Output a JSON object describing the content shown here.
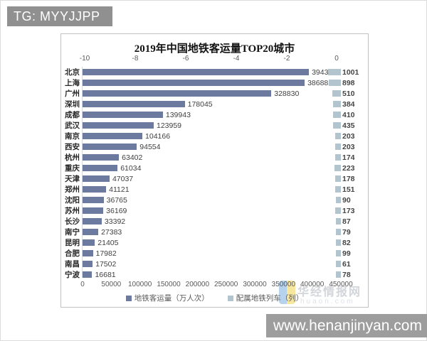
{
  "banners": {
    "tg": "TG: MYYJJPP",
    "site": "www.henanjinyan.com"
  },
  "watermark": {
    "brand": "华经情报网",
    "domain": "huaon.com",
    "logo_colors": [
      "#aacbe9",
      "#f6e28e"
    ]
  },
  "chart_data": {
    "type": "bar",
    "orientation": "horizontal",
    "title": "2019年中国地铁客运量TOP20城市",
    "categories": [
      "北京",
      "上海",
      "广州",
      "深圳",
      "成都",
      "武汉",
      "南京",
      "西安",
      "杭州",
      "重庆",
      "天津",
      "郑州",
      "沈阳",
      "苏州",
      "长沙",
      "南宁",
      "昆明",
      "合肥",
      "南昌",
      "宁波"
    ],
    "series": [
      {
        "name": "地铁客运量（万人次）",
        "color": "#6b7a9e",
        "axis": "bottom",
        "values": [
          394318,
          386885,
          328830,
          178045,
          139943,
          123959,
          104166,
          94554,
          63402,
          61034,
          47037,
          41121,
          36765,
          36169,
          33392,
          27383,
          21405,
          17982,
          17502,
          16681
        ]
      },
      {
        "name": "配属地铁列车（列）",
        "color": "#b2c4ce",
        "axis": "top",
        "values": [
          1001,
          898,
          510,
          384,
          410,
          435,
          203,
          203,
          174,
          223,
          178,
          151,
          90,
          173,
          87,
          79,
          82,
          99,
          61,
          78
        ]
      }
    ],
    "top_axis": {
      "ticks": [
        "-10",
        "-8",
        "-6",
        "-4",
        "-2",
        "0"
      ],
      "range": [
        -10,
        0
      ]
    },
    "bottom_axis": {
      "ticks": [
        "0",
        "50000",
        "100000",
        "150000",
        "200000",
        "250000",
        "300000",
        "350000",
        "400000",
        "450000"
      ],
      "range": [
        0,
        450000
      ]
    },
    "legend_position": "bottom",
    "grid": false
  }
}
